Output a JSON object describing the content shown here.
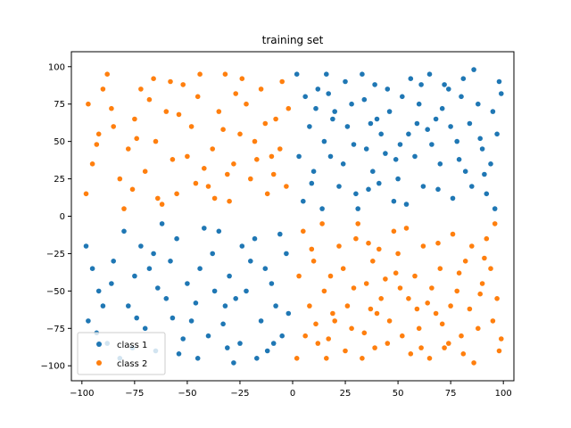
{
  "chart_data": {
    "type": "scatter",
    "title": "training set",
    "xlabel": "",
    "ylabel": "",
    "xlim": [
      -105,
      105
    ],
    "ylim": [
      -110,
      110
    ],
    "xticks": [
      -100,
      -75,
      -50,
      -25,
      0,
      25,
      50,
      75,
      100
    ],
    "yticks": [
      -100,
      -75,
      -50,
      -25,
      0,
      25,
      50,
      75,
      100
    ],
    "grid": false,
    "legend_position": "lower-left",
    "series": [
      {
        "name": "class 1",
        "color": "#1f77b4",
        "points": [
          [
            -98,
            -20
          ],
          [
            -95,
            -35
          ],
          [
            -92,
            -50
          ],
          [
            -97,
            -70
          ],
          [
            -88,
            -85
          ],
          [
            -82,
            -95
          ],
          [
            -78,
            -60
          ],
          [
            -75,
            -40
          ],
          [
            -72,
            -20
          ],
          [
            -80,
            -10
          ],
          [
            -70,
            -75
          ],
          [
            -65,
            -90
          ],
          [
            -60,
            -55
          ],
          [
            -58,
            -30
          ],
          [
            -55,
            -15
          ],
          [
            -50,
            -45
          ],
          [
            -48,
            -70
          ],
          [
            -45,
            -95
          ],
          [
            -40,
            -80
          ],
          [
            -38,
            -25
          ],
          [
            -35,
            -10
          ],
          [
            -32,
            -60
          ],
          [
            -30,
            -40
          ],
          [
            -28,
            -98
          ],
          [
            -25,
            -85
          ],
          [
            -22,
            -50
          ],
          [
            -20,
            -30
          ],
          [
            -18,
            -15
          ],
          [
            -15,
            -70
          ],
          [
            -12,
            -90
          ],
          [
            -10,
            -45
          ],
          [
            -8,
            -60
          ],
          [
            -5,
            -80
          ],
          [
            -3,
            -25
          ],
          [
            -85,
            -30
          ],
          [
            -90,
            -60
          ],
          [
            -62,
            -5
          ],
          [
            -42,
            -8
          ],
          [
            -68,
            -35
          ],
          [
            -52,
            -82
          ],
          [
            -33,
            -72
          ],
          [
            -27,
            -55
          ],
          [
            -13,
            -35
          ],
          [
            -6,
            -12
          ],
          [
            -93,
            -78
          ],
          [
            -76,
            -88
          ],
          [
            -57,
            -68
          ],
          [
            -37,
            -50
          ],
          [
            -17,
            -95
          ],
          [
            -2,
            -65
          ],
          [
            -86,
            -45
          ],
          [
            -66,
            -25
          ],
          [
            -46,
            -58
          ],
          [
            -24,
            -20
          ],
          [
            -9,
            -85
          ],
          [
            -74,
            -68
          ],
          [
            -54,
            -92
          ],
          [
            -31,
            -88
          ],
          [
            -64,
            -48
          ],
          [
            -44,
            -35
          ],
          [
            5,
            10
          ],
          [
            10,
            30
          ],
          [
            15,
            50
          ],
          [
            20,
            70
          ],
          [
            25,
            90
          ],
          [
            30,
            15
          ],
          [
            35,
            45
          ],
          [
            40,
            65
          ],
          [
            45,
            85
          ],
          [
            50,
            25
          ],
          [
            55,
            55
          ],
          [
            60,
            75
          ],
          [
            65,
            95
          ],
          [
            70,
            35
          ],
          [
            75,
            60
          ],
          [
            80,
            80
          ],
          [
            85,
            20
          ],
          [
            90,
            45
          ],
          [
            95,
            70
          ],
          [
            98,
            90
          ],
          [
            8,
            60
          ],
          [
            12,
            85
          ],
          [
            18,
            40
          ],
          [
            22,
            20
          ],
          [
            28,
            75
          ],
          [
            33,
            95
          ],
          [
            38,
            30
          ],
          [
            42,
            55
          ],
          [
            48,
            10
          ],
          [
            52,
            80
          ],
          [
            58,
            40
          ],
          [
            62,
            20
          ],
          [
            68,
            65
          ],
          [
            72,
            88
          ],
          [
            78,
            50
          ],
          [
            82,
            30
          ],
          [
            88,
            75
          ],
          [
            92,
            15
          ],
          [
            97,
            55
          ],
          [
            3,
            40
          ],
          [
            6,
            80
          ],
          [
            16,
            95
          ],
          [
            26,
            60
          ],
          [
            36,
            18
          ],
          [
            46,
            70
          ],
          [
            56,
            92
          ],
          [
            66,
            48
          ],
          [
            76,
            12
          ],
          [
            86,
            98
          ],
          [
            94,
            35
          ],
          [
            14,
            5
          ],
          [
            24,
            35
          ],
          [
            34,
            78
          ],
          [
            44,
            42
          ],
          [
            54,
            8
          ],
          [
            64,
            58
          ],
          [
            74,
            85
          ],
          [
            84,
            62
          ],
          [
            96,
            5
          ],
          [
            9,
            22
          ],
          [
            19,
            65
          ],
          [
            29,
            48
          ],
          [
            39,
            88
          ],
          [
            49,
            38
          ],
          [
            59,
            62
          ],
          [
            69,
            18
          ],
          [
            79,
            38
          ],
          [
            89,
            52
          ],
          [
            99,
            82
          ],
          [
            11,
            72
          ],
          [
            31,
            5
          ],
          [
            41,
            22
          ],
          [
            51,
            48
          ],
          [
            61,
            88
          ],
          [
            71,
            72
          ],
          [
            81,
            92
          ],
          [
            91,
            28
          ],
          [
            2,
            95
          ],
          [
            17,
            82
          ],
          [
            37,
            62
          ]
        ]
      },
      {
        "name": "class 2",
        "color": "#ff7f0e",
        "points": [
          [
            -98,
            15
          ],
          [
            -95,
            35
          ],
          [
            -92,
            55
          ],
          [
            -97,
            75
          ],
          [
            -88,
            95
          ],
          [
            -82,
            25
          ],
          [
            -78,
            45
          ],
          [
            -75,
            65
          ],
          [
            -72,
            85
          ],
          [
            -80,
            5
          ],
          [
            -70,
            30
          ],
          [
            -65,
            50
          ],
          [
            -60,
            70
          ],
          [
            -58,
            90
          ],
          [
            -55,
            15
          ],
          [
            -50,
            40
          ],
          [
            -48,
            60
          ],
          [
            -45,
            80
          ],
          [
            -40,
            20
          ],
          [
            -38,
            45
          ],
          [
            -35,
            70
          ],
          [
            -32,
            95
          ],
          [
            -30,
            10
          ],
          [
            -28,
            35
          ],
          [
            -25,
            55
          ],
          [
            -22,
            75
          ],
          [
            -20,
            25
          ],
          [
            -18,
            50
          ],
          [
            -15,
            85
          ],
          [
            -12,
            15
          ],
          [
            -10,
            40
          ],
          [
            -8,
            65
          ],
          [
            -5,
            90
          ],
          [
            -3,
            20
          ],
          [
            -85,
            60
          ],
          [
            -90,
            85
          ],
          [
            -62,
            8
          ],
          [
            -42,
            32
          ],
          [
            -68,
            78
          ],
          [
            -52,
            88
          ],
          [
            -33,
            58
          ],
          [
            -27,
            82
          ],
          [
            -13,
            62
          ],
          [
            -6,
            45
          ],
          [
            -93,
            48
          ],
          [
            -76,
            18
          ],
          [
            -57,
            38
          ],
          [
            -37,
            12
          ],
          [
            -17,
            38
          ],
          [
            -2,
            72
          ],
          [
            -86,
            72
          ],
          [
            -66,
            92
          ],
          [
            -46,
            22
          ],
          [
            -24,
            92
          ],
          [
            -9,
            28
          ],
          [
            -74,
            52
          ],
          [
            -54,
            68
          ],
          [
            -31,
            28
          ],
          [
            -64,
            12
          ],
          [
            -44,
            95
          ],
          [
            5,
            -10
          ],
          [
            10,
            -30
          ],
          [
            15,
            -50
          ],
          [
            20,
            -70
          ],
          [
            25,
            -90
          ],
          [
            30,
            -15
          ],
          [
            35,
            -45
          ],
          [
            40,
            -65
          ],
          [
            45,
            -85
          ],
          [
            50,
            -25
          ],
          [
            55,
            -55
          ],
          [
            60,
            -75
          ],
          [
            65,
            -95
          ],
          [
            70,
            -35
          ],
          [
            75,
            -60
          ],
          [
            80,
            -80
          ],
          [
            85,
            -20
          ],
          [
            90,
            -45
          ],
          [
            95,
            -70
          ],
          [
            98,
            -90
          ],
          [
            8,
            -60
          ],
          [
            12,
            -85
          ],
          [
            18,
            -40
          ],
          [
            22,
            -20
          ],
          [
            28,
            -75
          ],
          [
            33,
            -95
          ],
          [
            38,
            -30
          ],
          [
            42,
            -55
          ],
          [
            48,
            -10
          ],
          [
            52,
            -80
          ],
          [
            58,
            -40
          ],
          [
            62,
            -20
          ],
          [
            68,
            -65
          ],
          [
            72,
            -88
          ],
          [
            78,
            -50
          ],
          [
            82,
            -30
          ],
          [
            88,
            -75
          ],
          [
            92,
            -15
          ],
          [
            97,
            -55
          ],
          [
            3,
            -40
          ],
          [
            6,
            -80
          ],
          [
            16,
            -95
          ],
          [
            26,
            -60
          ],
          [
            36,
            -18
          ],
          [
            46,
            -70
          ],
          [
            56,
            -92
          ],
          [
            66,
            -48
          ],
          [
            76,
            -12
          ],
          [
            86,
            -98
          ],
          [
            94,
            -35
          ],
          [
            14,
            -5
          ],
          [
            24,
            -35
          ],
          [
            34,
            -78
          ],
          [
            44,
            -42
          ],
          [
            54,
            -8
          ],
          [
            64,
            -58
          ],
          [
            74,
            -85
          ],
          [
            84,
            -62
          ],
          [
            96,
            -5
          ],
          [
            9,
            -22
          ],
          [
            19,
            -65
          ],
          [
            29,
            -48
          ],
          [
            39,
            -88
          ],
          [
            49,
            -38
          ],
          [
            59,
            -62
          ],
          [
            69,
            -18
          ],
          [
            79,
            -38
          ],
          [
            89,
            -52
          ],
          [
            99,
            -82
          ],
          [
            11,
            -72
          ],
          [
            31,
            -5
          ],
          [
            41,
            -22
          ],
          [
            51,
            -48
          ],
          [
            61,
            -88
          ],
          [
            71,
            -72
          ],
          [
            81,
            -92
          ],
          [
            91,
            -28
          ],
          [
            2,
            -95
          ],
          [
            17,
            -82
          ],
          [
            37,
            -62
          ]
        ]
      }
    ]
  }
}
